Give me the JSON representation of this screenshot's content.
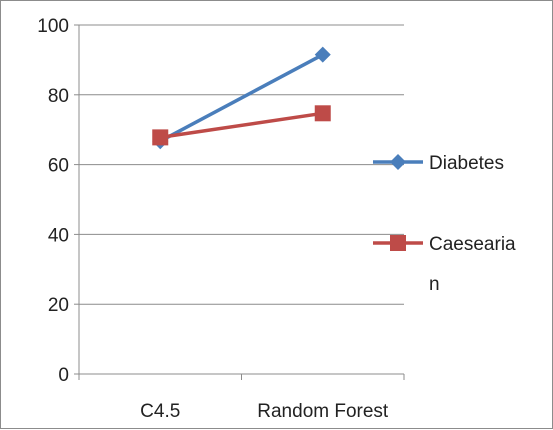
{
  "chart_data": {
    "type": "line",
    "title": "",
    "xlabel": "",
    "ylabel": "",
    "categories": [
      "C4.5",
      "Random Forest"
    ],
    "ylim": [
      0,
      100
    ],
    "yticks": [
      "0",
      "20",
      "40",
      "60",
      "80",
      "100"
    ],
    "grid": "horizontal",
    "legend": "right",
    "series": [
      {
        "name": "Diabetes",
        "values": [
          66.7,
          91.5
        ],
        "color": "#4a7ebb",
        "marker": "diamond"
      },
      {
        "name": "Caesearian",
        "name_lines": [
          "Caesearia",
          "n"
        ],
        "values": [
          67.8,
          74.7
        ],
        "color": "#be4b48",
        "marker": "square"
      }
    ]
  }
}
